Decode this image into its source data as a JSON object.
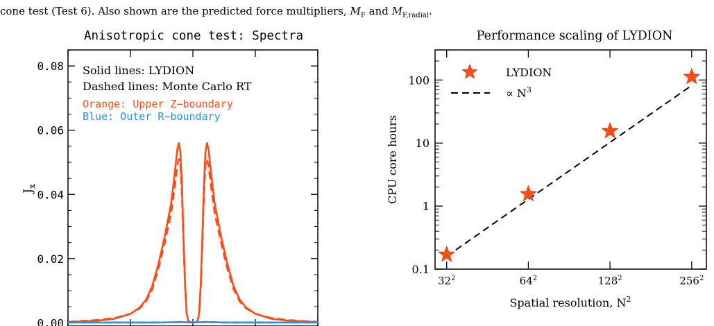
{
  "caption": {
    "line1": "",
    "line2_text": "cone test (Test 6). Also shown are the predicted force multipliers,",
    "mf": "M",
    "mf_sub": "F",
    "and": "and",
    "mfr": "M",
    "mfr_sub": "F,radial",
    "end": "."
  },
  "chart_data": [
    {
      "type": "line",
      "title": "Anisotropic cone test: Spectra",
      "xlabel": "",
      "ylabel": "J",
      "ylabel_sub": "x",
      "xlim": [
        -40,
        40
      ],
      "ylim": [
        -0.001,
        0.085
      ],
      "xticks": [
        -40,
        -20,
        0,
        20,
        40
      ],
      "yticks": [
        0.0,
        0.02,
        0.04,
        0.06,
        0.08
      ],
      "ytick_labels": [
        "0.00",
        "0.02",
        "0.04",
        "0.06",
        "0.08"
      ],
      "annotations": [
        {
          "text": "Solid lines: LYDION",
          "color": "#000000"
        },
        {
          "text": "Dashed lines: Monte Carlo RT",
          "color": "#000000"
        },
        {
          "text": "Orange: Upper Z−boundary",
          "color": "#ff4d14"
        },
        {
          "text": "Blue: Outer R−boundary",
          "color": "#2a8de6"
        }
      ],
      "series": [
        {
          "style": "solid",
          "color": "#ff4d14",
          "x": [
            -40,
            -30,
            -25,
            -20,
            -17,
            -15,
            -13,
            -11,
            -9,
            -7,
            -6,
            -5,
            -4.5,
            -4,
            -3.5,
            -3,
            -2.5,
            -2,
            -1.5,
            -1,
            0,
            1,
            1.5,
            2,
            2.5,
            3,
            3.5,
            4,
            4.5,
            5,
            6,
            7,
            9,
            11,
            13,
            15,
            17,
            20,
            25,
            30,
            40
          ],
          "y": [
            0.0002,
            0.0007,
            0.0013,
            0.0028,
            0.0048,
            0.0072,
            0.0115,
            0.0185,
            0.027,
            0.037,
            0.045,
            0.054,
            0.056,
            0.053,
            0.042,
            0.026,
            0.012,
            0.003,
            0.0006,
            0.0002,
            0.0001,
            0.0002,
            0.0006,
            0.003,
            0.012,
            0.026,
            0.042,
            0.053,
            0.056,
            0.054,
            0.045,
            0.037,
            0.027,
            0.0185,
            0.0115,
            0.0072,
            0.0048,
            0.0028,
            0.0013,
            0.0007,
            0.0002
          ]
        },
        {
          "style": "dashed",
          "color": "#ff4d14",
          "x": [
            -40,
            -30,
            -25,
            -20,
            -17,
            -15,
            -13,
            -11,
            -9,
            -7,
            -6,
            -5,
            -4.5,
            -4,
            -3.5,
            -3,
            -2.5,
            -2,
            -1.5,
            -1,
            0,
            1,
            1.5,
            2,
            2.5,
            3,
            3.5,
            4,
            4.5,
            5,
            6,
            7,
            9,
            11,
            13,
            15,
            17,
            20,
            25,
            30,
            40
          ],
          "y": [
            0.0003,
            0.0009,
            0.0015,
            0.0028,
            0.0045,
            0.0066,
            0.0105,
            0.017,
            0.025,
            0.034,
            0.041,
            0.049,
            0.051,
            0.049,
            0.039,
            0.024,
            0.011,
            0.003,
            0.0006,
            0.0002,
            0.0001,
            0.0002,
            0.0006,
            0.003,
            0.011,
            0.024,
            0.039,
            0.049,
            0.051,
            0.049,
            0.041,
            0.034,
            0.025,
            0.017,
            0.0105,
            0.0066,
            0.0045,
            0.0028,
            0.0015,
            0.0009,
            0.0003
          ]
        },
        {
          "style": "solid",
          "color": "#2a8de6",
          "x": [
            -40,
            -20,
            -10,
            -5,
            -4,
            -3,
            0,
            3,
            4,
            5,
            10,
            20,
            40
          ],
          "y": [
            0.0001,
            0.0001,
            0.0001,
            0.0002,
            0.0003,
            0.0002,
            0.0001,
            0.0002,
            0.0003,
            0.0002,
            0.0001,
            0.0001,
            0.0001
          ]
        },
        {
          "style": "dashed",
          "color": "#2a8de6",
          "x": [
            -40,
            -20,
            -10,
            -5,
            0,
            5,
            10,
            20,
            40
          ],
          "y": [
            0.0001,
            0.0001,
            0.0001,
            0.0002,
            0.0001,
            0.0002,
            0.0001,
            0.0001,
            0.0001
          ]
        }
      ]
    },
    {
      "type": "scatter",
      "title": "Performance scaling of LYDION",
      "xlabel": "Spatial resolution, N",
      "xlabel_sup": "2",
      "ylabel": "CPU core hours",
      "xscale": "log",
      "yscale": "log",
      "xlim": [
        29,
        290
      ],
      "ylim": [
        0.1,
        300
      ],
      "xticks": [
        32,
        64,
        128,
        256
      ],
      "xtick_labels": [
        {
          "base": "32",
          "sup": "2"
        },
        {
          "base": "64",
          "sup": "2"
        },
        {
          "base": "128",
          "sup": "2"
        },
        {
          "base": "256",
          "sup": "2"
        }
      ],
      "yticks": [
        0.1,
        1,
        10,
        100
      ],
      "ytick_labels": [
        "0.1",
        "1",
        "10",
        "100"
      ],
      "legend": {
        "placement": "top-left",
        "entries": [
          {
            "label": "LYDION",
            "marker": "star",
            "color": "#ff4d14"
          },
          {
            "label": "∝ N",
            "label_sup": "3",
            "line": "dashed",
            "color": "#000000"
          }
        ]
      },
      "points": {
        "name": "LYDION",
        "x": [
          32,
          64,
          128,
          256
        ],
        "y": [
          0.17,
          1.55,
          15.5,
          112
        ],
        "color": "#ff4d14"
      },
      "fit": {
        "x": [
          32,
          256
        ],
        "y": [
          0.16,
          82
        ]
      }
    }
  ]
}
